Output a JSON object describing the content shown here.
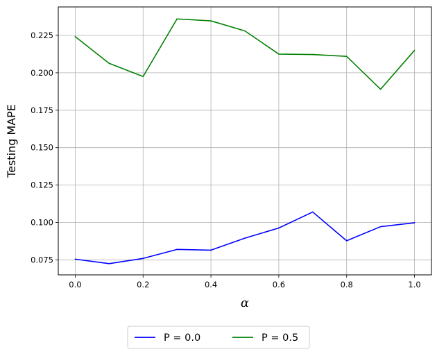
{
  "chart_data": {
    "type": "line",
    "title": "",
    "xlabel": "α",
    "ylabel": "Testing MAPE",
    "x": [
      0.0,
      0.1,
      0.2,
      0.3,
      0.4,
      0.5,
      0.6,
      0.7,
      0.8,
      0.9,
      1.0
    ],
    "xlim": [
      -0.05,
      1.05
    ],
    "ylim": [
      0.065,
      0.244
    ],
    "xticks": [
      0.0,
      0.2,
      0.4,
      0.6,
      0.8,
      1.0
    ],
    "xtick_labels": [
      "0.0",
      "0.2",
      "0.4",
      "0.6",
      "0.8",
      "1.0"
    ],
    "yticks": [
      0.075,
      0.1,
      0.125,
      0.15,
      0.175,
      0.2,
      0.225
    ],
    "ytick_labels": [
      "0.075",
      "0.100",
      "0.125",
      "0.150",
      "0.175",
      "0.200",
      "0.225"
    ],
    "grid": true,
    "legend_position": "bottom-center-outside",
    "series": [
      {
        "name": "P = 0.0",
        "color": "#0000ff",
        "values": [
          0.0755,
          0.0725,
          0.076,
          0.082,
          0.0815,
          0.0895,
          0.0963,
          0.107,
          0.0878,
          0.0972,
          0.0998
        ]
      },
      {
        "name": "P = 0.5",
        "color": "#008000",
        "values": [
          0.2242,
          0.2063,
          0.1975,
          0.236,
          0.2347,
          0.228,
          0.2125,
          0.2122,
          0.211,
          0.189,
          0.215
        ]
      }
    ]
  }
}
